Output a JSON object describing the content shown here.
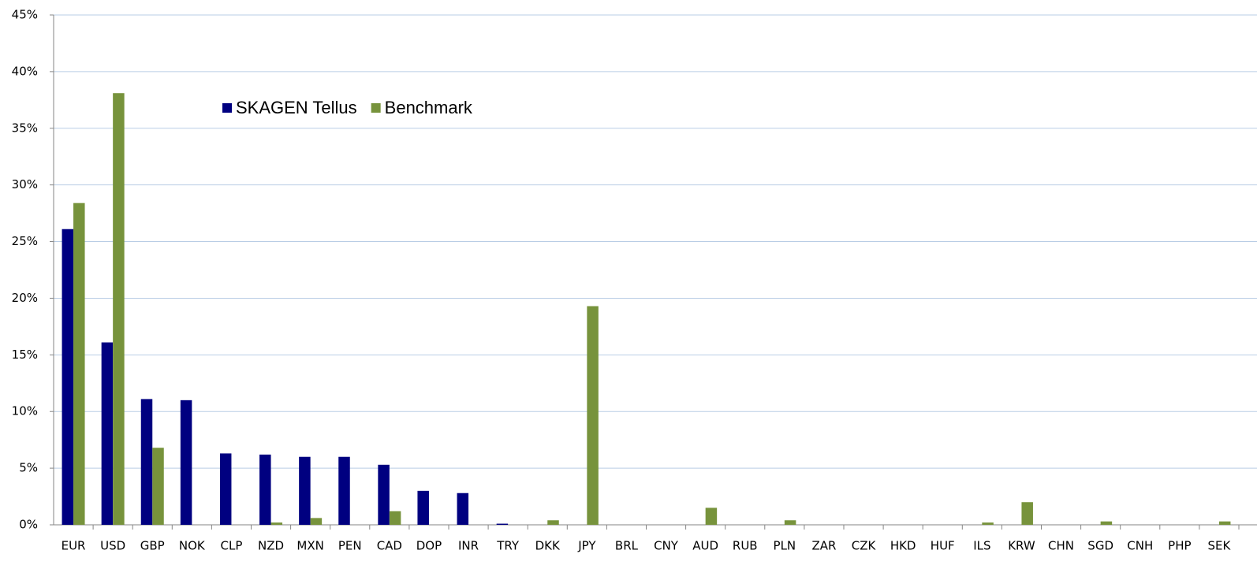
{
  "chart_data": {
    "type": "bar",
    "categories": [
      "EUR",
      "USD",
      "GBP",
      "NOK",
      "CLP",
      "NZD",
      "MXN",
      "PEN",
      "CAD",
      "DOP",
      "INR",
      "TRY",
      "DKK",
      "JPY",
      "BRL",
      "CNY",
      "AUD",
      "RUB",
      "PLN",
      "ZAR",
      "CZK",
      "HKD",
      "HUF",
      "ILS",
      "KRW",
      "CHN",
      "SGD",
      "CNH",
      "PHP",
      "SEK"
    ],
    "series": [
      {
        "name": "SKAGEN Tellus",
        "color": "#000080",
        "values": [
          26.1,
          16.1,
          11.1,
          11.0,
          6.3,
          6.2,
          6.0,
          6.0,
          5.3,
          3.0,
          2.8,
          0.1,
          0,
          0,
          0,
          0,
          0,
          0,
          0,
          0,
          0,
          0,
          0,
          0,
          0,
          0,
          0,
          0,
          0,
          0
        ]
      },
      {
        "name": "Benchmark",
        "color": "#77933c",
        "values": [
          28.4,
          38.1,
          6.8,
          0,
          0,
          0.2,
          0.6,
          0,
          1.2,
          0,
          0,
          0,
          0.4,
          19.3,
          0,
          0,
          1.5,
          0,
          0.4,
          0,
          0,
          0,
          0,
          0.2,
          2.0,
          0,
          0.3,
          0,
          0,
          0.3
        ]
      }
    ],
    "ylim": [
      0,
      45
    ],
    "yticks": [
      {
        "value": 0,
        "label": "0%"
      },
      {
        "value": 5,
        "label": "5%"
      },
      {
        "value": 10,
        "label": "10%"
      },
      {
        "value": 15,
        "label": "15%"
      },
      {
        "value": 20,
        "label": "20%"
      },
      {
        "value": 25,
        "label": "25%"
      },
      {
        "value": 30,
        "label": "30%"
      },
      {
        "value": 35,
        "label": "35%"
      },
      {
        "value": 40,
        "label": "40%"
      },
      {
        "value": 45,
        "label": "45%"
      }
    ],
    "grid": true,
    "legend": "top-left"
  }
}
